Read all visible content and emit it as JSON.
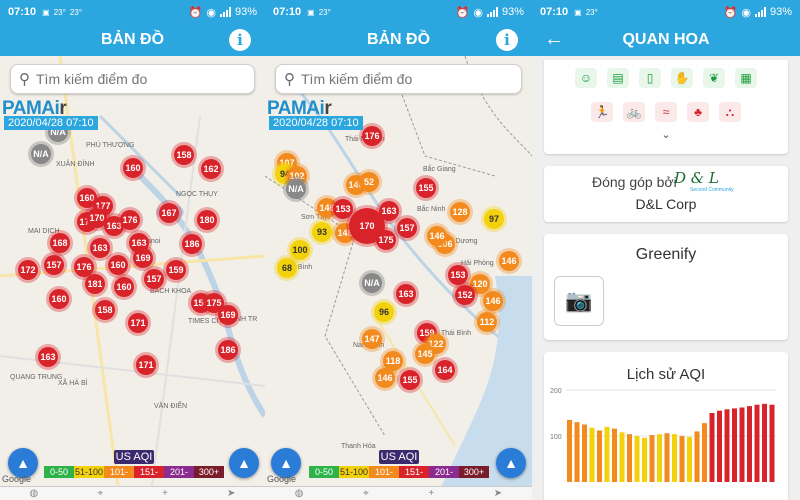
{
  "status": {
    "time": "07:10",
    "temp": "23°",
    "battery": "93%"
  },
  "screen1": {
    "title": "BẢN ĐỒ",
    "search_placeholder": "Tìm kiếm điểm đo",
    "logo_main": "PAMAi",
    "logo_r": "r",
    "datetime": "2020/04/28 07:10",
    "places": [
      {
        "text": "PHÚ THƯỢNG"
      },
      {
        "text": "XUÂN ĐỈNH"
      },
      {
        "text": "NGỌC THỤY"
      },
      {
        "text": "MAI DỊCH"
      },
      {
        "text": "Hanoi"
      },
      {
        "text": "BACH KHOA"
      },
      {
        "text": "TIMES CITY"
      },
      {
        "text": "QUANG TRUNG"
      },
      {
        "text": "XÃ HÀ BÌ"
      },
      {
        "text": "VĂN ĐIỂN"
      },
      {
        "text": "THANH TR"
      }
    ],
    "markers": [
      {
        "v": "N/A",
        "c": "gray"
      },
      {
        "v": "N/A",
        "c": "gray"
      },
      {
        "v": "158",
        "c": "red"
      },
      {
        "v": "162",
        "c": "red"
      },
      {
        "v": "160",
        "c": "red"
      },
      {
        "v": "160",
        "c": "red"
      },
      {
        "v": "177",
        "c": "red"
      },
      {
        "v": "171",
        "c": "red"
      },
      {
        "v": "170",
        "c": "red"
      },
      {
        "v": "167",
        "c": "red"
      },
      {
        "v": "180",
        "c": "red"
      },
      {
        "v": "163",
        "c": "red"
      },
      {
        "v": "176",
        "c": "red"
      },
      {
        "v": "163",
        "c": "red"
      },
      {
        "v": "168",
        "c": "red"
      },
      {
        "v": "163",
        "c": "red"
      },
      {
        "v": "186",
        "c": "red"
      },
      {
        "v": "169",
        "c": "red"
      },
      {
        "v": "160",
        "c": "red"
      },
      {
        "v": "157",
        "c": "red"
      },
      {
        "v": "176",
        "c": "red"
      },
      {
        "v": "172",
        "c": "red"
      },
      {
        "v": "159",
        "c": "red"
      },
      {
        "v": "181",
        "c": "red"
      },
      {
        "v": "160",
        "c": "red"
      },
      {
        "v": "157",
        "c": "red"
      },
      {
        "v": "158",
        "c": "red"
      },
      {
        "v": "156",
        "c": "red"
      },
      {
        "v": "175",
        "c": "red"
      },
      {
        "v": "169",
        "c": "red"
      },
      {
        "v": "160",
        "c": "red"
      },
      {
        "v": "171",
        "c": "red"
      },
      {
        "v": "163",
        "c": "red"
      },
      {
        "v": "171",
        "c": "red"
      },
      {
        "v": "186",
        "c": "red"
      }
    ],
    "legend": {
      "title": "US AQI",
      "ranges": [
        "0-50",
        "51-100",
        "101-",
        "151-",
        "201-",
        "300+"
      ]
    },
    "credit": "Google"
  },
  "screen2": {
    "title": "BẢN ĐỒ",
    "search_placeholder": "Tìm kiếm điểm đo",
    "logo_main": "PAMAi",
    "logo_r": "r",
    "datetime": "2020/04/28 07:10",
    "places": [
      {
        "text": "Thái Nguyên"
      },
      {
        "text": "Bắc Giang"
      },
      {
        "text": "Sơn Tây"
      },
      {
        "text": "Bắc Ninh"
      },
      {
        "text": "Hải Dương"
      },
      {
        "text": "Hòa Bình"
      },
      {
        "text": "Hải Phòng"
      },
      {
        "text": "Thái Bình"
      },
      {
        "text": "Nam Định"
      },
      {
        "text": "Thanh Hóa"
      }
    ],
    "markers": [
      {
        "v": "176",
        "c": "red"
      },
      {
        "v": "107",
        "c": "orange"
      },
      {
        "v": "94",
        "c": "yellow"
      },
      {
        "v": "102",
        "c": "orange"
      },
      {
        "v": "N/A",
        "c": "gray"
      },
      {
        "v": "146",
        "c": "orange"
      },
      {
        "v": "52",
        "c": "orange"
      },
      {
        "v": "155",
        "c": "red"
      },
      {
        "v": "146",
        "c": "orange"
      },
      {
        "v": "153",
        "c": "red"
      },
      {
        "v": "128",
        "c": "orange"
      },
      {
        "v": "97",
        "c": "yellow"
      },
      {
        "v": "93",
        "c": "yellow"
      },
      {
        "v": "148",
        "c": "orange"
      },
      {
        "v": "170",
        "c": "red"
      },
      {
        "v": "163",
        "c": "red"
      },
      {
        "v": "157",
        "c": "red"
      },
      {
        "v": "175",
        "c": "red"
      },
      {
        "v": "106",
        "c": "orange"
      },
      {
        "v": "146",
        "c": "orange"
      },
      {
        "v": "100",
        "c": "yellow"
      },
      {
        "v": "68",
        "c": "yellow"
      },
      {
        "v": "146",
        "c": "orange"
      },
      {
        "v": "153",
        "c": "red"
      },
      {
        "v": "N/A",
        "c": "gray"
      },
      {
        "v": "163",
        "c": "red"
      },
      {
        "v": "120",
        "c": "orange"
      },
      {
        "v": "152",
        "c": "red"
      },
      {
        "v": "146",
        "c": "orange"
      },
      {
        "v": "96",
        "c": "yellow"
      },
      {
        "v": "112",
        "c": "orange"
      },
      {
        "v": "159",
        "c": "red"
      },
      {
        "v": "147",
        "c": "orange"
      },
      {
        "v": "122",
        "c": "orange"
      },
      {
        "v": "145",
        "c": "orange"
      },
      {
        "v": "118",
        "c": "orange"
      },
      {
        "v": "164",
        "c": "red"
      },
      {
        "v": "146",
        "c": "orange"
      },
      {
        "v": "155",
        "c": "red"
      }
    ],
    "legend": {
      "title": "US AQI",
      "ranges": [
        "0-50",
        "51-100",
        "101-",
        "151-",
        "201-",
        "300+"
      ]
    },
    "credit": "Google"
  },
  "screen3": {
    "title": "QUAN HOA",
    "categories_row1": [
      "mask-icon",
      "bus-icon",
      "door-icon",
      "hand-leaf-icon",
      "plant-hand-icon",
      "air-purifier-icon"
    ],
    "categories_row2": [
      "running-icon",
      "bicycle-icon",
      "swimming-icon",
      "sprout-icon",
      "playground-icon"
    ],
    "contributor_label": "Đóng góp bởi",
    "contributor_logo": "D & L",
    "contributor_tagline": "Second Community",
    "contributor_name": "D&L Corp",
    "greenify_title": "Greenify",
    "history_title": "Lịch sử AQI",
    "colors": {
      "accent": "#2ba6de",
      "red": "#d9232a",
      "orange": "#f28a1e",
      "yellow": "#f4d20b"
    }
  },
  "chart_data": {
    "type": "bar",
    "title": "Lịch sử AQI",
    "ylim": [
      0,
      200
    ],
    "yticks": [
      100,
      200
    ],
    "values": [
      135,
      130,
      125,
      118,
      112,
      120,
      116,
      108,
      104,
      100,
      96,
      102,
      104,
      106,
      104,
      100,
      98,
      110,
      128,
      150,
      155,
      158,
      160,
      162,
      165,
      168,
      170,
      168
    ],
    "colors": [
      "orange",
      "orange",
      "orange",
      "yellow",
      "orange",
      "yellow",
      "orange",
      "yellow",
      "orange",
      "yellow",
      "yellow",
      "orange",
      "yellow",
      "orange",
      "yellow",
      "orange",
      "yellow",
      "orange",
      "orange",
      "red",
      "red",
      "red",
      "red",
      "red",
      "red",
      "red",
      "red",
      "red"
    ]
  }
}
